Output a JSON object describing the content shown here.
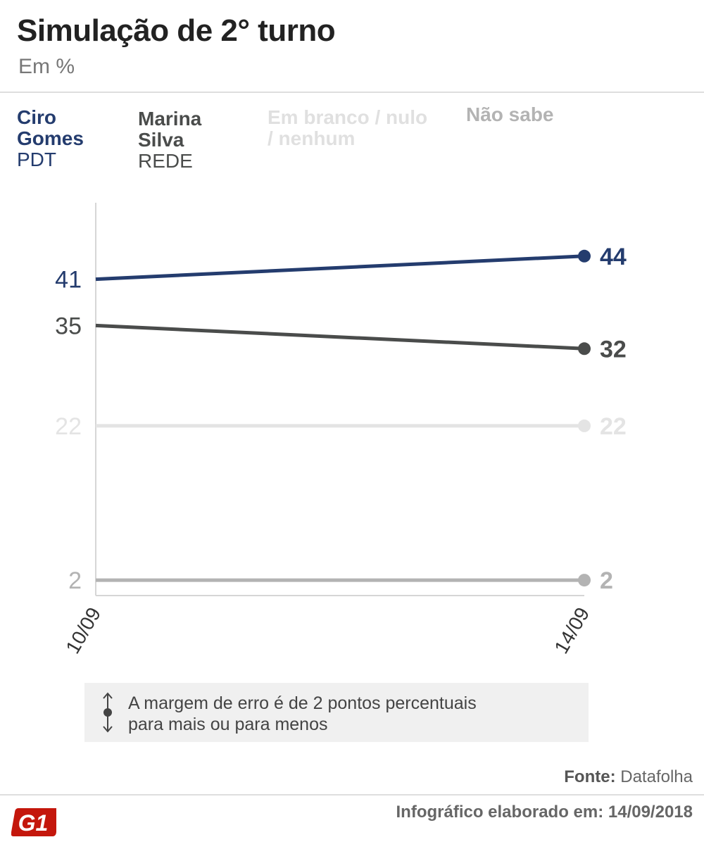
{
  "header": {
    "title": "Simulação de 2° turno",
    "subtitle": "Em %"
  },
  "legend": [
    {
      "name": "Ciro Gomes",
      "party": "PDT",
      "color": "#243c6e"
    },
    {
      "name": "Marina Silva",
      "party": "REDE",
      "color": "#4a4c4b"
    },
    {
      "name": "Em branco / nulo / nenhum",
      "party": "",
      "color": "#e4e4e4"
    },
    {
      "name": "Não sabe",
      "party": "",
      "color": "#b3b3b3"
    }
  ],
  "chart_data": {
    "type": "line",
    "title": "Simulação de 2° turno",
    "subtitle": "Em %",
    "x": [
      "10/09",
      "14/09"
    ],
    "ylim": [
      0,
      50
    ],
    "grid": false,
    "legend_position": "top",
    "series": [
      {
        "name": "Ciro Gomes",
        "values": [
          41,
          44
        ],
        "color": "#243c6e"
      },
      {
        "name": "Marina Silva",
        "values": [
          35,
          32
        ],
        "color": "#4a4c4b"
      },
      {
        "name": "Em branco / nulo / nenhum",
        "values": [
          22,
          22
        ],
        "color": "#e4e4e4"
      },
      {
        "name": "Não sabe",
        "values": [
          2,
          2
        ],
        "color": "#b3b3b3"
      }
    ]
  },
  "note": {
    "text_line1": "A margem de erro é de 2 pontos percentuais",
    "text_line2": "para mais ou para menos"
  },
  "footer": {
    "source_label": "Fonte:",
    "source_value": "Datafolha",
    "made_label": "Infográfico elaborado em:",
    "made_value": "14/09/2018",
    "logo_text": "G1",
    "logo_color": "#c4170c"
  }
}
